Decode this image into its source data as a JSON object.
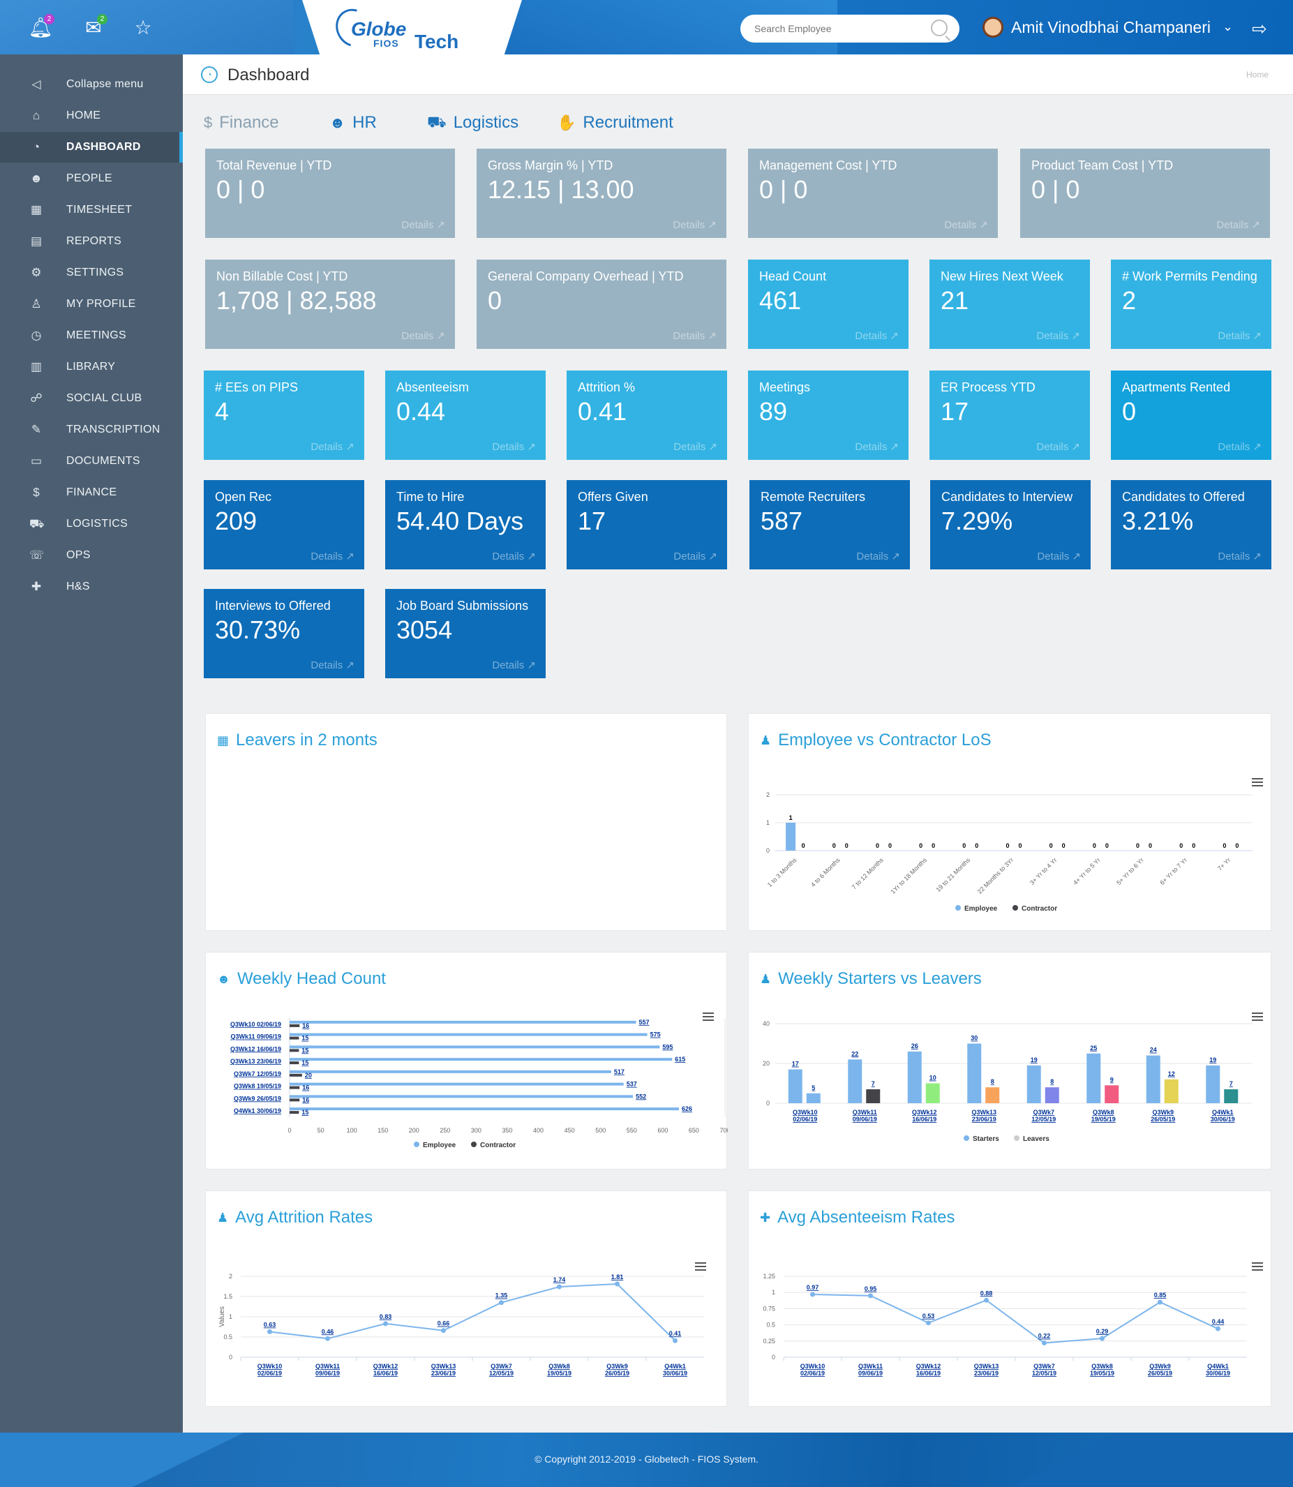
{
  "header": {
    "notifications_count": "2",
    "messages_count": "2",
    "logo_globe": "Globe",
    "logo_fios": "FIOS",
    "logo_tech": "Tech",
    "search_placeholder": "Search Employee",
    "user_name": "Amit Vinodbhai Champaneri",
    "icons": [
      "bell-icon",
      "envelope-icon",
      "star-icon",
      "search-icon",
      "chevron-down-icon",
      "logout-icon"
    ]
  },
  "sidebar": {
    "items": [
      {
        "label": "Collapse menu",
        "icon": "◁"
      },
      {
        "label": "HOME",
        "icon": "⌂"
      },
      {
        "label": "DASHBOARD",
        "icon": "◔"
      },
      {
        "label": "PEOPLE",
        "icon": "☻"
      },
      {
        "label": "TIMESHEET",
        "icon": "▦"
      },
      {
        "label": "REPORTS",
        "icon": "▤"
      },
      {
        "label": "SETTINGS",
        "icon": "⚙"
      },
      {
        "label": "MY PROFILE",
        "icon": "♙"
      },
      {
        "label": "MEETINGS",
        "icon": "◷"
      },
      {
        "label": "LIBRARY",
        "icon": "▥"
      },
      {
        "label": "SOCIAL CLUB",
        "icon": "☍"
      },
      {
        "label": "TRANSCRIPTION",
        "icon": "✎"
      },
      {
        "label": "DOCUMENTS",
        "icon": "▭"
      },
      {
        "label": "FINANCE",
        "icon": "$"
      },
      {
        "label": "LOGISTICS",
        "icon": "⛟"
      },
      {
        "label": "OPS",
        "icon": "☏"
      },
      {
        "label": "H&S",
        "icon": "✚"
      }
    ]
  },
  "page": {
    "title": "Dashboard",
    "breadcrumb": "Home"
  },
  "tabs": [
    {
      "label": "Finance",
      "icon": "$"
    },
    {
      "label": "HR",
      "icon": "☻"
    },
    {
      "label": "Logistics",
      "icon": "⛟"
    },
    {
      "label": "Recruitment",
      "icon": "✋"
    }
  ],
  "details_label": "Details",
  "cards": [
    {
      "title": "Total Revenue | YTD",
      "value": "0 | 0"
    },
    {
      "title": "Gross Margin % | YTD",
      "value": "12.15 | 13.00"
    },
    {
      "title": "Management Cost | YTD",
      "value": "0 | 0"
    },
    {
      "title": "Product Team Cost | YTD",
      "value": "0 | 0"
    },
    {
      "title": "Non Billable Cost | YTD",
      "value": "1,708 | 82,588"
    },
    {
      "title": "General Company Overhead | YTD",
      "value": "0"
    },
    {
      "title": "Head Count",
      "value": "461"
    },
    {
      "title": "New Hires Next Week",
      "value": "21"
    },
    {
      "title": "# Work Permits Pending",
      "value": "2"
    },
    {
      "title": "# EEs on PIPS",
      "value": "4"
    },
    {
      "title": "Absenteeism",
      "value": "0.44"
    },
    {
      "title": "Attrition %",
      "value": "0.41"
    },
    {
      "title": "Meetings",
      "value": "89"
    },
    {
      "title": "ER Process YTD",
      "value": "17"
    },
    {
      "title": "Apartments Rented",
      "value": "0"
    },
    {
      "title": "Open Rec",
      "value": "209"
    },
    {
      "title": "Time to Hire",
      "value": "54.40 Days"
    },
    {
      "title": "Offers Given",
      "value": "17"
    },
    {
      "title": "Remote Recruiters",
      "value": "587"
    },
    {
      "title": "Candidates to Interview",
      "value": "7.29%"
    },
    {
      "title": "Candidates to Offered",
      "value": "3.21%"
    },
    {
      "title": "Interviews to Offered",
      "value": "30.73%"
    },
    {
      "title": "Job Board Submissions",
      "value": "3054"
    }
  ],
  "panels": {
    "leavers_title": "Leavers in 2 monts",
    "los_title": "Employee vs Contractor LoS",
    "headcount_title": "Weekly Head Count",
    "starters_title": "Weekly Starters vs Leavers",
    "attrition_title": "Avg Attrition Rates",
    "absenteeism_title": "Avg Absenteeism Rates"
  },
  "chart_data": [
    {
      "type": "bar",
      "title": "Employee vs Contractor LoS",
      "categories": [
        "1 to 3 Months",
        "4 to 6 Months",
        "7 to 12 Months",
        "1Yr to 18 Months",
        "19 to 21 Months",
        "22 Months to 3Yr",
        "3+ Yr to 4 Yr",
        "4+ Yr to 5 Yr",
        "5+ Yr to 6 Yr",
        "6+ Yr to 7 Yr",
        "7+ Yr"
      ],
      "series": [
        {
          "name": "Employee",
          "values": [
            1,
            0,
            0,
            0,
            0,
            0,
            0,
            0,
            0,
            0,
            0
          ],
          "color": "#7cb5ec"
        },
        {
          "name": "Contractor",
          "values": [
            0,
            0,
            0,
            0,
            0,
            0,
            0,
            0,
            0,
            0,
            0
          ],
          "color": "#434348"
        }
      ],
      "ylim": [
        0,
        2
      ],
      "yticks": [
        0,
        1,
        2
      ],
      "legend": "bottom"
    },
    {
      "type": "bar",
      "orientation": "horizontal",
      "title": "Weekly Head Count",
      "categories": [
        "Q3Wk10 02/06/19",
        "Q3Wk11 09/06/19",
        "Q3Wk12 16/06/19",
        "Q3Wk13 23/06/19",
        "Q3Wk7 12/05/19",
        "Q3Wk8 19/05/19",
        "Q3Wk9 26/05/19",
        "Q4Wk1 30/06/19"
      ],
      "series": [
        {
          "name": "Employee",
          "values": [
            557,
            575,
            595,
            615,
            517,
            537,
            552,
            626
          ],
          "color": "#7cb5ec"
        },
        {
          "name": "Contractor",
          "values": [
            16,
            15,
            15,
            15,
            20,
            16,
            16,
            15
          ],
          "color": "#434348"
        }
      ],
      "xlim": [
        0,
        700
      ],
      "xticks": [
        0,
        50,
        100,
        150,
        200,
        250,
        300,
        350,
        400,
        450,
        500,
        550,
        600,
        650,
        700
      ],
      "legend": "bottom"
    },
    {
      "type": "bar",
      "title": "Weekly Starters vs Leavers",
      "categories": [
        "Q3Wk10 02/06/19",
        "Q3Wk11 09/06/19",
        "Q3Wk12 16/06/19",
        "Q3Wk13 23/06/19",
        "Q3Wk7 12/05/19",
        "Q3Wk8 19/05/19",
        "Q3Wk9 26/05/19",
        "Q4Wk1 30/06/19"
      ],
      "series": [
        {
          "name": "Starters",
          "values": [
            17,
            22,
            26,
            30,
            19,
            25,
            24,
            19
          ],
          "color": "#7cb5ec"
        },
        {
          "name": "Leavers",
          "values": [
            5,
            7,
            10,
            8,
            8,
            9,
            12,
            7
          ],
          "colors": [
            "#7cb5ec",
            "#434348",
            "#90ed7d",
            "#f7a35c",
            "#8085e9",
            "#f15c80",
            "#e4d354",
            "#2b908f"
          ]
        }
      ],
      "ylim": [
        0,
        40
      ],
      "yticks": [
        0,
        20,
        40
      ],
      "legend": "bottom"
    },
    {
      "type": "line",
      "title": "Avg Attrition Rates",
      "ylabel": "Values",
      "categories": [
        "Q3Wk10 02/06/19",
        "Q3Wk11 09/06/19",
        "Q3Wk12 16/06/19",
        "Q3Wk13 23/06/19",
        "Q3Wk7 12/05/19",
        "Q3Wk8 19/05/19",
        "Q3Wk9 26/05/19",
        "Q4Wk1 30/06/19"
      ],
      "values": [
        0.63,
        0.46,
        0.83,
        0.66,
        1.35,
        1.74,
        1.81,
        0.41
      ],
      "ylim": [
        0,
        2
      ],
      "yticks": [
        0,
        0.5,
        1,
        1.5,
        2
      ]
    },
    {
      "type": "line",
      "title": "Avg Absenteeism Rates",
      "categories": [
        "Q3Wk10 02/06/19",
        "Q3Wk11 09/06/19",
        "Q3Wk12 16/06/19",
        "Q3Wk13 23/06/19",
        "Q3Wk7 12/05/19",
        "Q3Wk8 19/05/19",
        "Q3Wk9 26/05/19",
        "Q4Wk1 30/06/19"
      ],
      "values": [
        0.97,
        0.95,
        0.53,
        0.88,
        0.22,
        0.29,
        0.85,
        0.44
      ],
      "ylim": [
        0,
        1.25
      ],
      "yticks": [
        0,
        0.25,
        0.5,
        0.75,
        1,
        1.25
      ]
    }
  ],
  "footer": {
    "copyright": "© Copyright 2012-2019 - Globetech - FIOS System."
  }
}
